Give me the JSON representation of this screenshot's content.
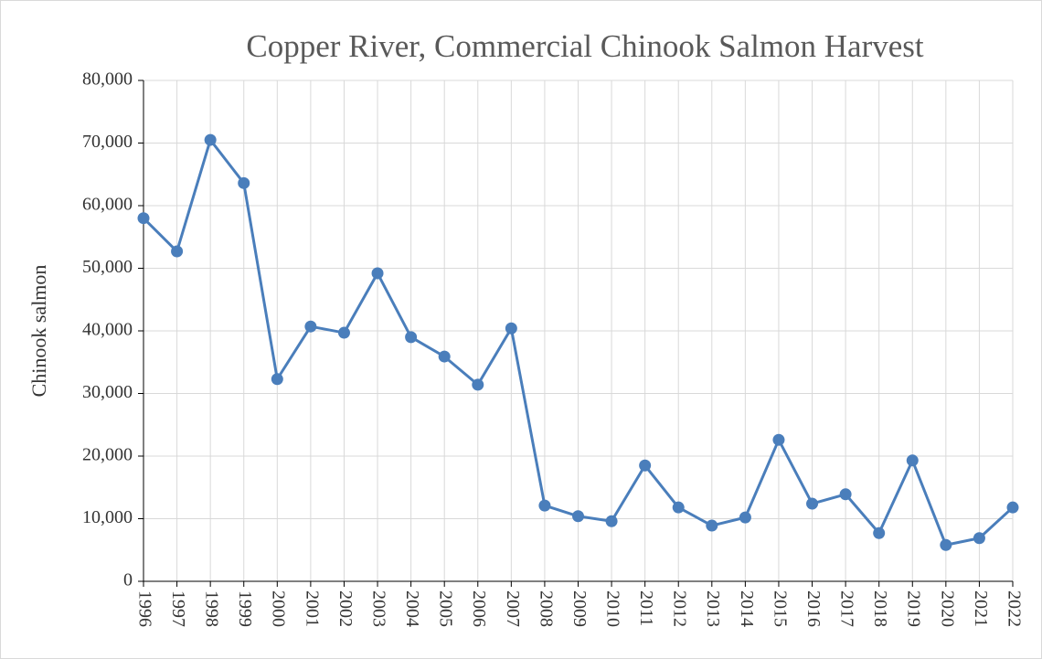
{
  "chart_data": {
    "type": "line",
    "title": "Copper River, Commercial Chinook Salmon Harvest",
    "y_label": "Chinook salmon",
    "categories": [
      "1996",
      "1997",
      "1998",
      "1999",
      "2000",
      "2001",
      "2002",
      "2003",
      "2004",
      "2005",
      "2006",
      "2007",
      "2008",
      "2009",
      "2010",
      "2011",
      "2012",
      "2013",
      "2014",
      "2015",
      "2016",
      "2017",
      "2018",
      "2019",
      "2020",
      "2021",
      "2022"
    ],
    "series": [
      {
        "name": "Chinook salmon",
        "color": "#4a7ebb",
        "values": [
          58000,
          52700,
          70500,
          63600,
          32300,
          40700,
          39700,
          49200,
          39000,
          35900,
          31400,
          40400,
          12100,
          10400,
          9600,
          18500,
          11800,
          8900,
          10200,
          22600,
          12400,
          13900,
          7700,
          19300,
          5800,
          6900,
          11800
        ]
      }
    ],
    "ylim": [
      0,
      80000
    ],
    "yticks": [
      0,
      {
        "value": 10000,
        "label": "10,000"
      },
      {
        "value": 20000,
        "label": "20,000"
      },
      {
        "value": 30000,
        "label": "30,000"
      },
      {
        "value": 40000,
        "label": "40,000"
      },
      {
        "value": 50000,
        "label": "50,000"
      },
      {
        "value": 60000,
        "label": "60,000"
      },
      {
        "value": 70000,
        "label": "70,000"
      },
      {
        "value": 80000,
        "label": "80,000"
      }
    ],
    "grid": true
  }
}
